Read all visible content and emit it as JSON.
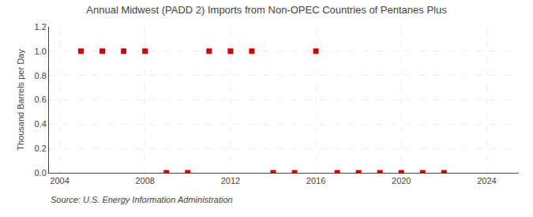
{
  "chart_data": {
    "type": "scatter",
    "title": "Annual Midwest (PADD 2) Imports from Non-OPEC Countries of Pentanes Plus",
    "ylabel": "Thousand Barrels per Day",
    "x": [
      2005,
      2006,
      2007,
      2008,
      2009,
      2010,
      2011,
      2012,
      2013,
      2014,
      2015,
      2016,
      2017,
      2018,
      2019,
      2020,
      2021,
      2022
    ],
    "values": [
      1.0,
      1.0,
      1.0,
      1.0,
      0.0,
      0.0,
      1.0,
      1.0,
      1.0,
      0.0,
      0.0,
      1.0,
      0.0,
      0.0,
      0.0,
      0.0,
      0.0,
      0.0
    ],
    "color": "#cc0000",
    "marker": "square",
    "xlim": [
      2003.5,
      2025.5
    ],
    "ylim": [
      0.0,
      1.2
    ],
    "xticks": [
      2004,
      2008,
      2012,
      2016,
      2020,
      2024
    ],
    "yticks": [
      {
        "value": 0.0,
        "label": "0.0"
      },
      0.2,
      0.4,
      0.6,
      0.8,
      {
        "value": 1.0,
        "label": "1.0"
      },
      1.2
    ],
    "grid": true,
    "annotations": [
      "Source: U.S. Energy Information Administration"
    ]
  }
}
